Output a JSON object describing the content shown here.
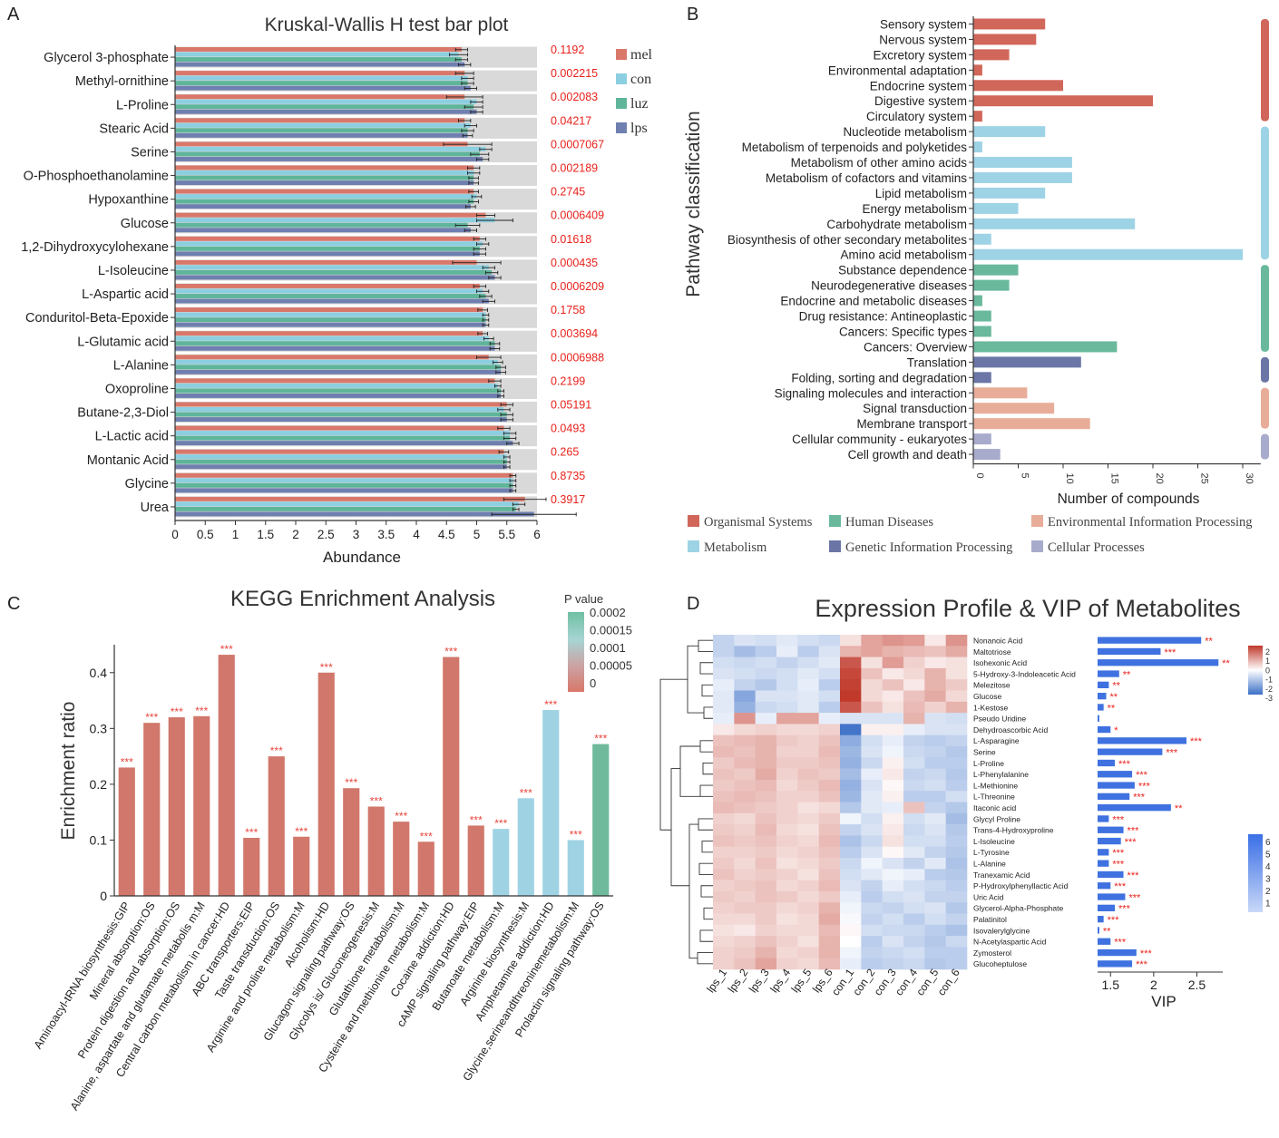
{
  "panels": {
    "a": "A",
    "b": "B",
    "c": "C",
    "d": "D"
  },
  "colors": {
    "mel": "#d9786a",
    "con": "#8ccfe0",
    "luz": "#5fb59a",
    "lps": "#6f7fb0",
    "bg": "#d9d9d9",
    "pval": "#e8211b",
    "organismal": "#d1675a",
    "metabolism": "#9dd3e5",
    "human": "#6ab99c",
    "genetic": "#6b76a6",
    "environmental": "#e8ad98",
    "cellular": "#a9abcc",
    "kegg_red": "#d1776b",
    "kegg_blue": "#9fd3e4",
    "kegg_green": "#6fba9d",
    "vip_bar": "#3f72e0",
    "heat_red": "#c0392b",
    "heat_blue": "#3b6fc7"
  },
  "chart_data": [
    {
      "type": "bar",
      "title": "Kruskal-Wallis H test bar plot",
      "xlabel": "Abundance",
      "ylabel": "",
      "xlim": [
        0,
        6
      ],
      "xticks": [
        "0",
        "0.5",
        "1",
        "1.5",
        "2",
        "2.5",
        "3",
        "3.5",
        "4",
        "4.5",
        "5",
        "5.5",
        "6"
      ],
      "categories": [
        "Glycerol 3-phosphate",
        "Methyl-ornithine",
        "L-Proline",
        "Stearic Acid",
        "Serine",
        "O-Phosphoethanolamine",
        "Hypoxanthine",
        "Glucose",
        "1,2-Dihydroxycylohexane",
        "L-Isoleucine",
        "L-Aspartic acid",
        "Conduritol-Beta-Epoxide",
        "L-Glutamic acid",
        "L-Alanine",
        "Oxoproline",
        "Butane-2,3-Diol",
        "L-Lactic acid",
        "Montanic Acid",
        "Glycine",
        "Urea"
      ],
      "pvalues": [
        "0.1192",
        "0.002215",
        "0.002083",
        "0.04217",
        "0.0007067",
        "0.002189",
        "0.2745",
        "0.0006409",
        "0.01618",
        "0.000435",
        "0.0006209",
        "0.1758",
        "0.003694",
        "0.0006988",
        "0.2199",
        "0.05191",
        "0.0493",
        "0.265",
        "0.8735",
        "0.3917"
      ],
      "series": [
        {
          "name": "mel",
          "values": [
            4.75,
            4.8,
            4.8,
            4.8,
            4.85,
            4.95,
            4.95,
            5.15,
            5.05,
            5.0,
            5.05,
            5.1,
            5.1,
            5.2,
            5.3,
            5.5,
            5.45,
            5.45,
            5.6,
            5.8
          ],
          "errors": [
            0.1,
            0.15,
            0.3,
            0.1,
            0.4,
            0.1,
            0.08,
            0.15,
            0.1,
            0.4,
            0.1,
            0.08,
            0.08,
            0.2,
            0.1,
            0.1,
            0.1,
            0.08,
            0.05,
            0.35
          ]
        },
        {
          "name": "con",
          "values": [
            4.7,
            4.85,
            5.0,
            4.9,
            5.15,
            4.95,
            5.0,
            5.3,
            5.1,
            5.2,
            5.1,
            5.15,
            5.2,
            5.35,
            5.35,
            5.45,
            5.55,
            5.5,
            5.6,
            5.7
          ],
          "errors": [
            0.15,
            0.1,
            0.1,
            0.1,
            0.1,
            0.1,
            0.08,
            0.3,
            0.1,
            0.1,
            0.1,
            0.05,
            0.08,
            0.08,
            0.05,
            0.1,
            0.1,
            0.05,
            0.05,
            0.1
          ]
        },
        {
          "name": "luz",
          "values": [
            4.75,
            4.85,
            4.95,
            4.85,
            5.05,
            4.95,
            4.95,
            4.85,
            5.05,
            5.25,
            5.15,
            5.15,
            5.3,
            5.4,
            5.4,
            5.5,
            5.55,
            5.5,
            5.6,
            5.65
          ],
          "errors": [
            0.1,
            0.1,
            0.15,
            0.1,
            0.15,
            0.08,
            0.08,
            0.2,
            0.1,
            0.1,
            0.1,
            0.05,
            0.08,
            0.08,
            0.05,
            0.1,
            0.1,
            0.05,
            0.05,
            0.05
          ]
        },
        {
          "name": "lps",
          "values": [
            4.8,
            4.9,
            5.0,
            4.85,
            5.1,
            4.95,
            4.9,
            4.9,
            5.05,
            5.3,
            5.2,
            5.15,
            5.3,
            5.4,
            5.4,
            5.5,
            5.6,
            5.5,
            5.6,
            5.95
          ],
          "errors": [
            0.1,
            0.1,
            0.1,
            0.08,
            0.1,
            0.08,
            0.08,
            0.1,
            0.1,
            0.1,
            0.1,
            0.05,
            0.08,
            0.08,
            0.05,
            0.1,
            0.1,
            0.05,
            0.05,
            0.7
          ]
        }
      ],
      "legend": [
        "mel",
        "con",
        "luz",
        "lps"
      ]
    },
    {
      "type": "bar",
      "title": "",
      "xlabel": "Number of compounds",
      "ylabel": "Pathway classification",
      "xlim": [
        0,
        32
      ],
      "xticks": [
        "0",
        "5",
        "10",
        "15",
        "20",
        "25",
        "30"
      ],
      "categories": [
        "Sensory system",
        "Nervous system",
        "Excretory system",
        "Environmental adaptation",
        "Endocrine system",
        "Digestive system",
        "Circulatory system",
        "Nucleotide metabolism",
        "Metabolism of terpenoids and polyketides",
        "Metabolism of other amino acids",
        "Metabolism of cofactors and vitamins",
        "Lipid metabolism",
        "Energy metabolism",
        "Carbohydrate metabolism",
        "Biosynthesis of other secondary metabolites",
        "Amino acid metabolism",
        "Substance dependence",
        "Neurodegenerative diseases",
        "Endocrine and metabolic diseases",
        "Drug resistance: Antineoplastic",
        "Cancers: Specific types",
        "Cancers: Overview",
        "Translation",
        "Folding, sorting and degradation",
        "Signaling molecules and interaction",
        "Signal transduction",
        "Membrane transport",
        "Cellular community - eukaryotes",
        "Cell growth and death"
      ],
      "values": [
        8,
        7,
        4,
        1,
        10,
        20,
        1,
        8,
        1,
        11,
        11,
        8,
        5,
        18,
        2,
        30,
        5,
        4,
        1,
        2,
        2,
        16,
        12,
        2,
        6,
        9,
        13,
        2,
        3
      ],
      "groups": [
        "organismal",
        "organismal",
        "organismal",
        "organismal",
        "organismal",
        "organismal",
        "organismal",
        "metabolism",
        "metabolism",
        "metabolism",
        "metabolism",
        "metabolism",
        "metabolism",
        "metabolism",
        "metabolism",
        "metabolism",
        "human",
        "human",
        "human",
        "human",
        "human",
        "human",
        "genetic",
        "genetic",
        "environmental",
        "environmental",
        "environmental",
        "cellular",
        "cellular"
      ],
      "legend": [
        {
          "key": "organismal",
          "label": "Organismal Systems"
        },
        {
          "key": "human",
          "label": "Human Diseases"
        },
        {
          "key": "environmental",
          "label": "Environmental Information Processing"
        },
        {
          "key": "metabolism",
          "label": "Metabolism"
        },
        {
          "key": "genetic",
          "label": "Genetic Information Processing"
        },
        {
          "key": "cellular",
          "label": "Cellular Processes"
        }
      ]
    },
    {
      "type": "bar",
      "title": "KEGG Enrichment Analysis",
      "xlabel": "",
      "ylabel": "Enrichment ratio",
      "ylim": [
        0,
        0.45
      ],
      "yticks": [
        "0",
        "0.1",
        "0.2",
        "0.3",
        "0.4"
      ],
      "categories": [
        "Aminoacyl-tRNA biosynthesis:GIP",
        "Mineral absorption:OS",
        "Protein digestion and absorption:OS",
        "Alanine, aspartate and glutamate metabolis m:M",
        "Central carbon metabolism in cancer:HD",
        "ABC transporters:EIP",
        "Taste transduction:OS",
        "Arginine and proline metabolism:M",
        "Alcoholism:HD",
        "Glucagon signaling pathway:OS",
        "Glycolys is/ Gluconeogenesis:M",
        "Glutathione metabolism:M",
        "Cysteine and methionine metabolism:M",
        "Cocaine addiction:HD",
        "cAMP signaling pathway:EIP",
        "Butanoate metabolism:M",
        "Arginine biosynthesis:M",
        "Amphetamine addiction:HD",
        "Glycine,serineandthreoninemetabolism:M",
        "Prolactin signaling pathway:OS"
      ],
      "values": [
        0.23,
        0.31,
        0.32,
        0.322,
        0.432,
        0.104,
        0.25,
        0.106,
        0.4,
        0.193,
        0.16,
        0.133,
        0.097,
        0.428,
        0.126,
        0.12,
        0.175,
        0.333,
        0.1,
        0.272
      ],
      "colors": [
        "red",
        "red",
        "red",
        "red",
        "red",
        "red",
        "red",
        "red",
        "red",
        "red",
        "red",
        "red",
        "red",
        "red",
        "red",
        "blue",
        "blue",
        "blue",
        "blue",
        "green"
      ],
      "stars": "***",
      "colorbar": {
        "title": "P value",
        "ticks": [
          "0.0002",
          "0.00015",
          "0.0001",
          "0.00005",
          "0"
        ]
      }
    },
    {
      "type": "heatmap",
      "title": "Expression Profile & VIP of Metabolites",
      "columns": [
        "lps_1",
        "lps_2",
        "lps_3",
        "lps_4",
        "lps_5",
        "lps_6",
        "con_1",
        "con_2",
        "con_3",
        "con_4",
        "con_5",
        "con_6"
      ],
      "rows": [
        "Nonanoic Acid",
        "Maltotriose",
        "Isohexonic Acid",
        "5-Hydroxy-3-Indoleacetic Acid",
        "Melezitose",
        "Glucose",
        "1-Kestose",
        "Pseudo Uridine",
        "Dehydroascorbic Acid",
        "L-Asparagine",
        "Serine",
        "L-Proline",
        "L-Phenylalanine",
        "L-Methionine",
        "L-Threonine",
        "Itaconic acid",
        "Glycyl Proline",
        "Trans-4-Hydroxyproline",
        "L-Isoleucine",
        "L-Tyrosine",
        "L-Alanine",
        "Tranexamic Acid",
        "P-Hydroxylphenyllactic Acid",
        "Uric Acid",
        "Glycerol-Alpha-Phosphate",
        "Palatinitol",
        "Isovalerylglycine",
        "N-Acetylaspartic Acid",
        "Zymosterol",
        "Glucoheptulose"
      ],
      "matrix": [
        [
          -0.8,
          -0.5,
          -0.6,
          -0.4,
          -0.6,
          -0.7,
          0.4,
          1.2,
          1.4,
          1.3,
          0.3,
          1.4
        ],
        [
          -0.8,
          -1.2,
          -0.9,
          -0.3,
          -0.9,
          -0.5,
          1.0,
          1.2,
          1.0,
          0.9,
          0.8,
          1.1
        ],
        [
          -0.6,
          -0.7,
          -0.6,
          -0.8,
          -0.6,
          -0.4,
          2.2,
          0.4,
          1.3,
          0.6,
          0.3,
          0.4
        ],
        [
          -0.5,
          -0.6,
          -0.7,
          -0.6,
          -0.4,
          -0.6,
          2.4,
          0.8,
          0.3,
          0.5,
          1.0,
          0.4
        ],
        [
          -0.3,
          -0.8,
          -1.0,
          -0.6,
          -0.3,
          -0.9,
          2.5,
          0.5,
          0.8,
          0.3,
          1.0,
          0.7
        ],
        [
          -0.4,
          -1.6,
          -0.5,
          -0.5,
          -0.4,
          -0.6,
          2.6,
          0.5,
          0.3,
          0.8,
          1.1,
          0.5
        ],
        [
          -0.4,
          -1.4,
          -0.7,
          -0.6,
          -0.4,
          -0.9,
          2.2,
          0.8,
          0.4,
          0.9,
          0.6,
          1.0
        ],
        [
          -0.3,
          1.4,
          -0.3,
          1.2,
          1.2,
          -0.3,
          -0.5,
          -0.5,
          -0.5,
          1.0,
          -0.5,
          -0.6
        ],
        [
          0.3,
          0.5,
          0.6,
          0.5,
          0.5,
          0.6,
          -2.5,
          0.2,
          0.2,
          -0.3,
          -0.5,
          -0.5
        ],
        [
          0.8,
          0.9,
          1.0,
          0.7,
          0.6,
          0.8,
          -1.5,
          -0.6,
          -0.3,
          -0.8,
          -0.9,
          -0.8
        ],
        [
          0.9,
          0.8,
          1.0,
          0.6,
          0.6,
          0.9,
          -1.3,
          -0.5,
          -0.2,
          -0.7,
          -0.8,
          -1.0
        ],
        [
          0.7,
          0.9,
          1.0,
          0.7,
          0.7,
          0.8,
          -1.4,
          -0.7,
          0.2,
          -0.6,
          -0.9,
          -0.9
        ],
        [
          0.8,
          0.7,
          1.1,
          0.6,
          0.8,
          0.7,
          -1.2,
          -0.3,
          0.3,
          -0.8,
          -0.7,
          -1.0
        ],
        [
          0.7,
          0.8,
          0.9,
          0.5,
          0.7,
          0.9,
          -1.4,
          -0.5,
          0.1,
          -0.7,
          -0.6,
          -0.9
        ],
        [
          0.8,
          0.9,
          0.8,
          0.6,
          0.6,
          0.8,
          -1.3,
          -0.4,
          0.2,
          -0.9,
          -0.9,
          -0.6
        ],
        [
          0.9,
          0.8,
          0.7,
          0.6,
          0.4,
          0.5,
          -1.0,
          -0.4,
          -0.3,
          0.8,
          -0.8,
          -1.0
        ],
        [
          0.6,
          0.5,
          0.8,
          0.6,
          0.5,
          0.7,
          -0.2,
          -0.6,
          0.2,
          -0.6,
          -0.4,
          -1.2
        ],
        [
          0.7,
          0.6,
          0.9,
          0.5,
          0.4,
          0.8,
          -0.8,
          -0.5,
          0.3,
          -0.7,
          -0.5,
          -1.0
        ],
        [
          0.8,
          0.7,
          0.8,
          0.6,
          0.5,
          0.9,
          -1.1,
          -0.7,
          0.4,
          -0.6,
          -0.6,
          -0.9
        ],
        [
          0.6,
          0.6,
          0.7,
          0.5,
          0.6,
          0.8,
          -0.9,
          -0.5,
          0.1,
          -0.4,
          -0.8,
          -1.0
        ],
        [
          0.7,
          0.5,
          0.8,
          0.4,
          0.5,
          0.7,
          -0.7,
          -0.2,
          -0.5,
          -0.8,
          -0.4,
          -1.1
        ],
        [
          0.8,
          0.6,
          0.7,
          0.6,
          0.4,
          0.8,
          -0.6,
          -0.4,
          -0.2,
          -0.3,
          -0.9,
          -1.0
        ],
        [
          0.6,
          0.7,
          0.8,
          0.5,
          0.6,
          0.9,
          -0.5,
          -0.8,
          -0.3,
          -0.6,
          -0.7,
          -0.9
        ],
        [
          0.7,
          0.6,
          0.8,
          0.7,
          0.5,
          0.7,
          -0.3,
          -0.9,
          -0.6,
          -0.5,
          -0.8,
          -0.8
        ],
        [
          0.6,
          0.7,
          0.7,
          0.5,
          0.6,
          1.0,
          -0.2,
          -0.7,
          -0.8,
          -0.6,
          -0.5,
          -1.0
        ],
        [
          0.5,
          0.5,
          0.7,
          0.4,
          0.5,
          1.1,
          -0.1,
          -0.8,
          -0.6,
          -0.9,
          -0.6,
          -0.8
        ],
        [
          0.4,
          0.3,
          0.6,
          0.5,
          0.5,
          0.9,
          0.1,
          -0.6,
          -0.7,
          -0.7,
          -0.9,
          -1.1
        ],
        [
          0.5,
          0.6,
          0.8,
          0.6,
          0.4,
          1.0,
          0.0,
          -0.9,
          -0.5,
          -0.8,
          -1.0,
          -0.7
        ],
        [
          0.6,
          0.7,
          1.0,
          0.5,
          0.6,
          1.0,
          -0.2,
          -0.8,
          -0.7,
          -0.6,
          -0.9,
          -0.9
        ],
        [
          0.6,
          0.8,
          1.2,
          0.6,
          0.5,
          0.9,
          -0.3,
          -0.9,
          -0.8,
          -0.7,
          -1.0,
          -0.9
        ]
      ],
      "vip": {
        "label": "VIP",
        "xlim": [
          1.35,
          2.8
        ],
        "xticks": [
          "1.5",
          "2",
          "2.5"
        ],
        "values": [
          2.55,
          2.08,
          2.75,
          1.6,
          1.48,
          1.45,
          1.42,
          1.37,
          1.5,
          2.38,
          2.1,
          1.55,
          1.75,
          1.78,
          1.72,
          2.2,
          1.48,
          1.65,
          1.62,
          1.48,
          1.48,
          1.65,
          1.5,
          1.67,
          1.55,
          1.42,
          1.37,
          1.5,
          1.8,
          1.75
        ],
        "stars": [
          "**",
          "***",
          "**",
          "**",
          "**",
          "**",
          "**",
          "",
          "*",
          "***",
          "***",
          "***",
          "***",
          "***",
          "***",
          "**",
          "***",
          "***",
          "***",
          "***",
          "***",
          "***",
          "***",
          "***",
          "***",
          "***",
          "**",
          "***",
          "***",
          "***"
        ]
      },
      "colorbar1": {
        "ticks": [
          "2",
          "1",
          "0",
          "-1",
          "-2",
          "-3"
        ]
      },
      "colorbar2": {
        "ticks": [
          "6",
          "5",
          "4",
          "3",
          "2",
          "1"
        ]
      }
    }
  ]
}
